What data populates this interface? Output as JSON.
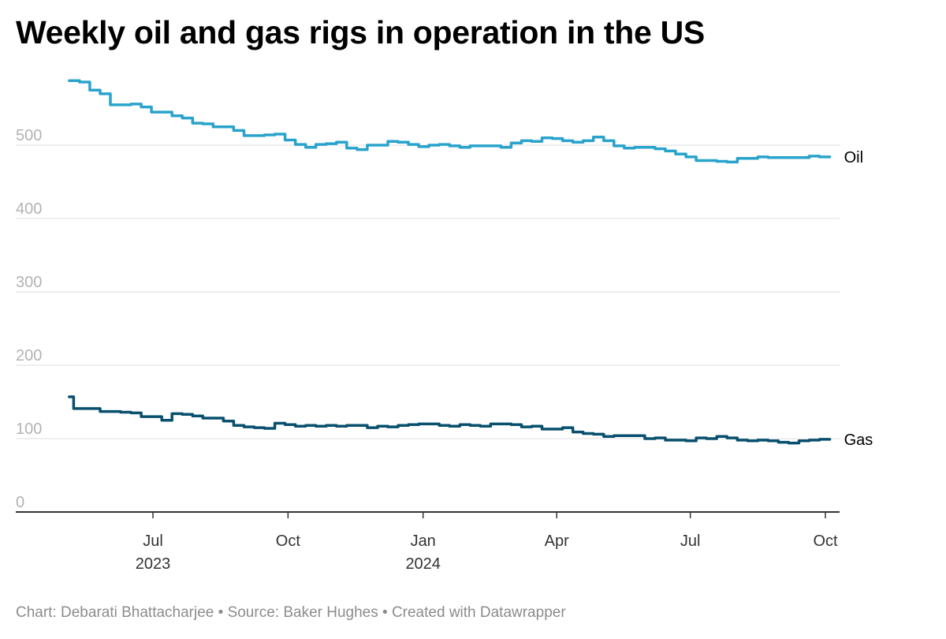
{
  "title": "Weekly oil and gas rigs in operation in the US",
  "footer": "Chart: Debarati Bhattacharjee • Source: Baker Hughes • Created with Datawrapper",
  "chart_data": {
    "type": "line",
    "title": "Weekly oil and gas rigs in operation in the US",
    "xlabel": "",
    "ylabel": "",
    "interpolation": "step",
    "ylim": [
      0,
      580
    ],
    "yticks": [
      0,
      100,
      200,
      300,
      400,
      500
    ],
    "xlim": [
      "2023-05-05",
      "2024-10-04"
    ],
    "xticks": [
      {
        "date": "2023-07-01",
        "label": "Jul",
        "year": "2023"
      },
      {
        "date": "2023-10-01",
        "label": "Oct",
        "year": ""
      },
      {
        "date": "2024-01-01",
        "label": "Jan",
        "year": "2024"
      },
      {
        "date": "2024-04-01",
        "label": "Apr",
        "year": ""
      },
      {
        "date": "2024-07-01",
        "label": "Jul",
        "year": ""
      },
      {
        "date": "2024-10-01",
        "label": "Oct",
        "year": ""
      }
    ],
    "grid": true,
    "legend": "inline labels at line ends (right)",
    "series": [
      {
        "name": "Oil",
        "color": "#29a3cc",
        "points": [
          [
            "2023-05-05",
            588
          ],
          [
            "2023-05-12",
            586
          ],
          [
            "2023-05-19",
            575
          ],
          [
            "2023-05-26",
            570
          ],
          [
            "2023-06-02",
            555
          ],
          [
            "2023-06-16",
            556
          ],
          [
            "2023-06-23",
            552
          ],
          [
            "2023-06-30",
            545
          ],
          [
            "2023-07-14",
            540
          ],
          [
            "2023-07-21",
            537
          ],
          [
            "2023-07-28",
            530
          ],
          [
            "2023-08-04",
            529
          ],
          [
            "2023-08-11",
            525
          ],
          [
            "2023-08-25",
            520
          ],
          [
            "2023-09-01",
            513
          ],
          [
            "2023-09-15",
            514
          ],
          [
            "2023-09-22",
            515
          ],
          [
            "2023-09-29",
            507
          ],
          [
            "2023-10-06",
            501
          ],
          [
            "2023-10-13",
            497
          ],
          [
            "2023-10-20",
            501
          ],
          [
            "2023-10-27",
            502
          ],
          [
            "2023-11-03",
            504
          ],
          [
            "2023-11-10",
            496
          ],
          [
            "2023-11-17",
            494
          ],
          [
            "2023-11-24",
            500
          ],
          [
            "2023-12-01",
            500
          ],
          [
            "2023-12-08",
            505
          ],
          [
            "2023-12-15",
            504
          ],
          [
            "2023-12-22",
            501
          ],
          [
            "2023-12-29",
            498
          ],
          [
            "2024-01-05",
            500
          ],
          [
            "2024-01-12",
            501
          ],
          [
            "2024-01-19",
            499
          ],
          [
            "2024-01-26",
            497
          ],
          [
            "2024-02-02",
            499
          ],
          [
            "2024-02-16",
            499
          ],
          [
            "2024-02-23",
            497
          ],
          [
            "2024-03-01",
            503
          ],
          [
            "2024-03-08",
            506
          ],
          [
            "2024-03-15",
            505
          ],
          [
            "2024-03-22",
            510
          ],
          [
            "2024-03-29",
            509
          ],
          [
            "2024-04-05",
            506
          ],
          [
            "2024-04-12",
            504
          ],
          [
            "2024-04-19",
            506
          ],
          [
            "2024-04-26",
            511
          ],
          [
            "2024-05-03",
            506
          ],
          [
            "2024-05-10",
            499
          ],
          [
            "2024-05-17",
            496
          ],
          [
            "2024-05-24",
            497
          ],
          [
            "2024-06-07",
            495
          ],
          [
            "2024-06-14",
            492
          ],
          [
            "2024-06-21",
            488
          ],
          [
            "2024-06-28",
            484
          ],
          [
            "2024-07-05",
            479
          ],
          [
            "2024-07-19",
            478
          ],
          [
            "2024-07-26",
            477
          ],
          [
            "2024-08-02",
            482
          ],
          [
            "2024-08-16",
            484
          ],
          [
            "2024-08-23",
            483
          ],
          [
            "2024-09-13",
            483
          ],
          [
            "2024-09-20",
            485
          ],
          [
            "2024-09-27",
            484
          ],
          [
            "2024-10-04",
            484
          ]
        ]
      },
      {
        "name": "Gas",
        "color": "#08506e",
        "points": [
          [
            "2023-05-05",
            157
          ],
          [
            "2023-05-08",
            141
          ],
          [
            "2023-05-19",
            141
          ],
          [
            "2023-05-26",
            137
          ],
          [
            "2023-06-09",
            136
          ],
          [
            "2023-06-16",
            135
          ],
          [
            "2023-06-23",
            130
          ],
          [
            "2023-07-07",
            125
          ],
          [
            "2023-07-14",
            134
          ],
          [
            "2023-07-21",
            133
          ],
          [
            "2023-07-28",
            131
          ],
          [
            "2023-08-04",
            128
          ],
          [
            "2023-08-18",
            124
          ],
          [
            "2023-08-25",
            118
          ],
          [
            "2023-09-01",
            116
          ],
          [
            "2023-09-08",
            115
          ],
          [
            "2023-09-15",
            114
          ],
          [
            "2023-09-22",
            121
          ],
          [
            "2023-09-29",
            119
          ],
          [
            "2023-10-06",
            117
          ],
          [
            "2023-10-13",
            118
          ],
          [
            "2023-10-20",
            117
          ],
          [
            "2023-10-27",
            118
          ],
          [
            "2023-11-03",
            117
          ],
          [
            "2023-11-10",
            118
          ],
          [
            "2023-11-24",
            115
          ],
          [
            "2023-12-01",
            117
          ],
          [
            "2023-12-08",
            116
          ],
          [
            "2023-12-15",
            118
          ],
          [
            "2023-12-22",
            119
          ],
          [
            "2023-12-29",
            120
          ],
          [
            "2024-01-12",
            118
          ],
          [
            "2024-01-19",
            117
          ],
          [
            "2024-01-26",
            119
          ],
          [
            "2024-02-02",
            118
          ],
          [
            "2024-02-09",
            117
          ],
          [
            "2024-02-16",
            120
          ],
          [
            "2024-03-01",
            119
          ],
          [
            "2024-03-08",
            116
          ],
          [
            "2024-03-15",
            117
          ],
          [
            "2024-03-22",
            113
          ],
          [
            "2024-03-29",
            113
          ],
          [
            "2024-04-05",
            115
          ],
          [
            "2024-04-12",
            109
          ],
          [
            "2024-04-19",
            107
          ],
          [
            "2024-04-26",
            106
          ],
          [
            "2024-05-03",
            103
          ],
          [
            "2024-05-10",
            104
          ],
          [
            "2024-05-31",
            100
          ],
          [
            "2024-06-07",
            101
          ],
          [
            "2024-06-14",
            98
          ],
          [
            "2024-06-28",
            97
          ],
          [
            "2024-07-05",
            101
          ],
          [
            "2024-07-12",
            100
          ],
          [
            "2024-07-19",
            103
          ],
          [
            "2024-07-26",
            101
          ],
          [
            "2024-08-02",
            98
          ],
          [
            "2024-08-09",
            97
          ],
          [
            "2024-08-16",
            98
          ],
          [
            "2024-08-23",
            97
          ],
          [
            "2024-08-30",
            95
          ],
          [
            "2024-09-06",
            94
          ],
          [
            "2024-09-13",
            97
          ],
          [
            "2024-09-20",
            98
          ],
          [
            "2024-09-27",
            99
          ],
          [
            "2024-10-04",
            99
          ]
        ]
      }
    ]
  }
}
